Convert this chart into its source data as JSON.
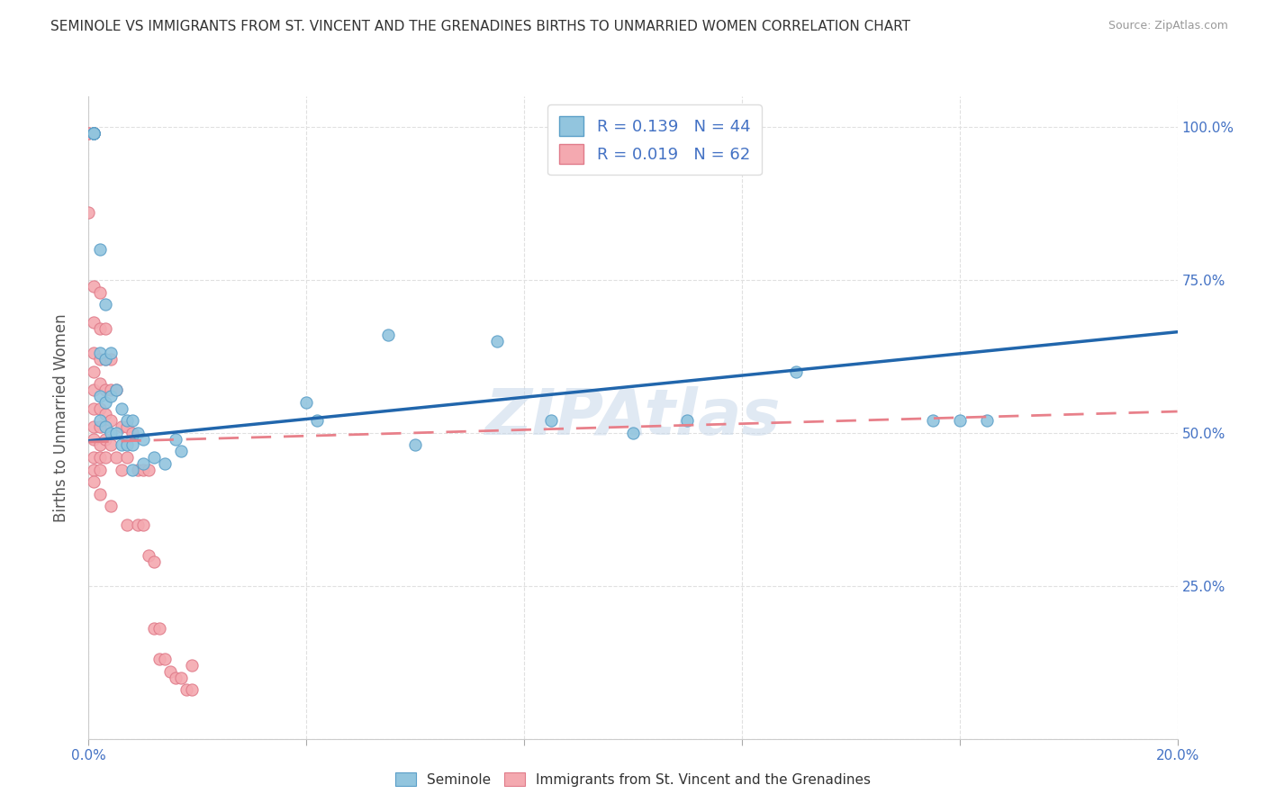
{
  "title": "SEMINOLE VS IMMIGRANTS FROM ST. VINCENT AND THE GRENADINES BIRTHS TO UNMARRIED WOMEN CORRELATION CHART",
  "source": "Source: ZipAtlas.com",
  "ylabel": "Births to Unmarried Women",
  "ylabel_right_ticks": [
    "100.0%",
    "75.0%",
    "50.0%",
    "25.0%"
  ],
  "ylabel_right_vals": [
    1.0,
    0.75,
    0.5,
    0.25
  ],
  "xlim": [
    0.0,
    0.2
  ],
  "ylim": [
    0.0,
    1.05
  ],
  "seminole_color": "#92c5de",
  "seminole_edge": "#5b9fc8",
  "immigrants_color": "#f4a9b0",
  "immigrants_edge": "#e07b8a",
  "seminole_R": 0.139,
  "seminole_N": 44,
  "immigrants_R": 0.019,
  "immigrants_N": 62,
  "seminole_scatter_x": [
    0.001,
    0.001,
    0.001,
    0.001,
    0.001,
    0.002,
    0.002,
    0.002,
    0.002,
    0.003,
    0.003,
    0.003,
    0.003,
    0.004,
    0.004,
    0.004,
    0.005,
    0.005,
    0.006,
    0.006,
    0.007,
    0.007,
    0.008,
    0.008,
    0.008,
    0.009,
    0.01,
    0.01,
    0.012,
    0.014,
    0.016,
    0.017,
    0.04,
    0.042,
    0.055,
    0.06,
    0.075,
    0.085,
    0.1,
    0.11,
    0.13,
    0.155,
    0.16,
    0.165
  ],
  "seminole_scatter_y": [
    0.99,
    0.99,
    0.99,
    0.99,
    0.99,
    0.8,
    0.63,
    0.56,
    0.52,
    0.71,
    0.62,
    0.55,
    0.51,
    0.63,
    0.56,
    0.5,
    0.57,
    0.5,
    0.54,
    0.48,
    0.52,
    0.48,
    0.52,
    0.48,
    0.44,
    0.5,
    0.49,
    0.45,
    0.46,
    0.45,
    0.49,
    0.47,
    0.55,
    0.52,
    0.66,
    0.48,
    0.65,
    0.52,
    0.5,
    0.52,
    0.6,
    0.52,
    0.52,
    0.52
  ],
  "immigrants_scatter_x": [
    0.0,
    0.0,
    0.0,
    0.001,
    0.001,
    0.001,
    0.001,
    0.001,
    0.001,
    0.001,
    0.001,
    0.001,
    0.001,
    0.001,
    0.001,
    0.001,
    0.002,
    0.002,
    0.002,
    0.002,
    0.002,
    0.002,
    0.002,
    0.002,
    0.002,
    0.002,
    0.003,
    0.003,
    0.003,
    0.003,
    0.003,
    0.003,
    0.004,
    0.004,
    0.004,
    0.004,
    0.004,
    0.005,
    0.005,
    0.006,
    0.006,
    0.007,
    0.007,
    0.007,
    0.008,
    0.009,
    0.009,
    0.01,
    0.01,
    0.011,
    0.011,
    0.012,
    0.012,
    0.013,
    0.013,
    0.014,
    0.015,
    0.016,
    0.017,
    0.018,
    0.019,
    0.019
  ],
  "immigrants_scatter_y": [
    0.99,
    0.99,
    0.86,
    0.99,
    0.99,
    0.74,
    0.68,
    0.63,
    0.6,
    0.57,
    0.54,
    0.51,
    0.49,
    0.46,
    0.44,
    0.42,
    0.73,
    0.67,
    0.62,
    0.58,
    0.54,
    0.51,
    0.48,
    0.46,
    0.44,
    0.4,
    0.67,
    0.62,
    0.57,
    0.53,
    0.49,
    0.46,
    0.62,
    0.57,
    0.52,
    0.48,
    0.38,
    0.57,
    0.46,
    0.51,
    0.44,
    0.51,
    0.46,
    0.35,
    0.5,
    0.44,
    0.35,
    0.44,
    0.35,
    0.44,
    0.3,
    0.29,
    0.18,
    0.18,
    0.13,
    0.13,
    0.11,
    0.1,
    0.1,
    0.08,
    0.12,
    0.08
  ],
  "seminole_line_x": [
    0.0,
    0.2
  ],
  "seminole_line_y": [
    0.487,
    0.665
  ],
  "immigrants_line_x": [
    0.0,
    0.2
  ],
  "immigrants_line_y": [
    0.485,
    0.535
  ],
  "watermark": "ZIPAtlas",
  "background_color": "#ffffff",
  "grid_color": "#e0e0e0",
  "xticks": [
    0.0,
    0.04,
    0.08,
    0.12,
    0.16,
    0.2
  ],
  "yticks": [
    0.0,
    0.25,
    0.5,
    0.75,
    1.0
  ]
}
